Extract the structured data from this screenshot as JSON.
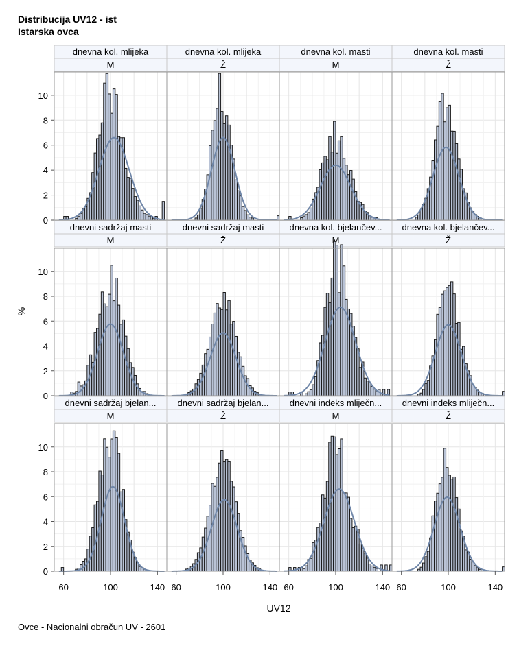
{
  "title_line1": "Distribucija UV12 - ist",
  "title_line2": "Istarska ovca",
  "footnote": "Ovce - Nacionalni obračun UV - 2601",
  "colors": {
    "bar_fill": "#b9c3d6",
    "bar_stroke": "#1b1b1b",
    "curve": "#6f86a8",
    "header_bg": "#f3f6fc",
    "grid": "#e6e6e6",
    "frame": "#9a9a9a"
  },
  "chart_data": {
    "type": "histogram-panel",
    "xlabel": "UV12",
    "ylabel": "%",
    "xlim": [
      52,
      148
    ],
    "ylim": [
      0,
      11.2
    ],
    "xticks": [
      60,
      100,
      140
    ],
    "yticks": [
      0,
      2,
      4,
      6,
      8,
      10
    ],
    "grid": true,
    "bin_width": 2,
    "bins_start": 56,
    "panels": [
      {
        "trait": "dnevna kol. mlijeka",
        "sex": "M",
        "mean": 103,
        "sd": 13,
        "peak": 10.2,
        "peak_at": 98,
        "skew": 1.4,
        "noise": 0.22,
        "outliers": [
          [
            60,
            0.3
          ],
          [
            62,
            0.3
          ],
          [
            124,
            0.3
          ],
          [
            130,
            0.3
          ],
          [
            134,
            0.3
          ],
          [
            138,
            0.3
          ],
          [
            144,
            1.5
          ]
        ]
      },
      {
        "trait": "dnevna kol. mlijeka",
        "sex": "Ž",
        "mean": 100,
        "sd": 10,
        "peak": 10.2,
        "peak_at": 96,
        "skew": 1.5,
        "noise": 0.18,
        "outliers": [
          [
            146,
            0.35
          ]
        ]
      },
      {
        "trait": "dnevna kol. masti",
        "sex": "M",
        "mean": 100,
        "sd": 13,
        "peak": 6.8,
        "peak_at": 98,
        "skew": 1.3,
        "noise": 0.2,
        "outliers": [
          [
            60,
            0.3
          ],
          [
            134,
            0.2
          ]
        ]
      },
      {
        "trait": "dnevna kol. masti",
        "sex": "Ž",
        "mean": 98,
        "sd": 11,
        "peak": 9.0,
        "peak_at": 96,
        "skew": 1.3,
        "noise": 0.15,
        "outliers": []
      },
      {
        "trait": "dnevni sadržaj masti",
        "sex": "M",
        "mean": 100,
        "sd": 11,
        "peak": 8.9,
        "peak_at": 100,
        "skew": 1.0,
        "noise": 0.25,
        "outliers": [
          [
            66,
            0.3
          ],
          [
            70,
            0.3
          ],
          [
            72,
            1.1
          ],
          [
            74,
            0.5
          ]
        ]
      },
      {
        "trait": "dnevni sadržaj masti",
        "sex": "Ž",
        "mean": 100,
        "sd": 11,
        "peak": 7.8,
        "peak_at": 100,
        "skew": 1.0,
        "noise": 0.12,
        "outliers": []
      },
      {
        "trait": "dnevna kol. bjelančevina",
        "sex": "M",
        "mean": 104,
        "sd": 13,
        "peak": 11.0,
        "peak_at": 100,
        "skew": 1.5,
        "noise": 0.25,
        "outliers": [
          [
            60,
            0.3
          ],
          [
            62,
            0.3
          ],
          [
            70,
            0.3
          ],
          [
            136,
            0.5
          ],
          [
            140,
            0.5
          ],
          [
            144,
            0.5
          ]
        ]
      },
      {
        "trait": "dnevna kol. bjelančevina",
        "sex": "Ž",
        "mean": 100,
        "sd": 11,
        "peak": 8.8,
        "peak_at": 98,
        "skew": 1.4,
        "noise": 0.18,
        "outliers": [
          [
            146,
            0.35
          ]
        ]
      },
      {
        "trait": "dnevni sadržaj bjelančevina",
        "sex": "M",
        "mean": 102,
        "sd": 10,
        "peak": 10.5,
        "peak_at": 100,
        "skew": 1.0,
        "noise": 0.2,
        "outliers": [
          [
            58,
            0.3
          ]
        ]
      },
      {
        "trait": "dnevni sadržaj bjelančevina",
        "sex": "Ž",
        "mean": 101,
        "sd": 11,
        "peak": 8.9,
        "peak_at": 100,
        "skew": 1.0,
        "noise": 0.12,
        "outliers": []
      },
      {
        "trait": "dnevni indeks mliječnosti",
        "sex": "M",
        "mean": 103,
        "sd": 13,
        "peak": 10.2,
        "peak_at": 98,
        "skew": 1.4,
        "noise": 0.25,
        "outliers": [
          [
            60,
            0.3
          ],
          [
            64,
            0.3
          ],
          [
            68,
            0.3
          ],
          [
            70,
            0.3
          ],
          [
            138,
            0.5
          ],
          [
            142,
            0.5
          ],
          [
            146,
            0.5
          ]
        ]
      },
      {
        "trait": "dnevni indeks mliječnosti",
        "sex": "Ž",
        "mean": 99,
        "sd": 11,
        "peak": 9.2,
        "peak_at": 96,
        "skew": 1.5,
        "noise": 0.18,
        "outliers": [
          [
            146,
            0.35
          ]
        ]
      }
    ]
  }
}
